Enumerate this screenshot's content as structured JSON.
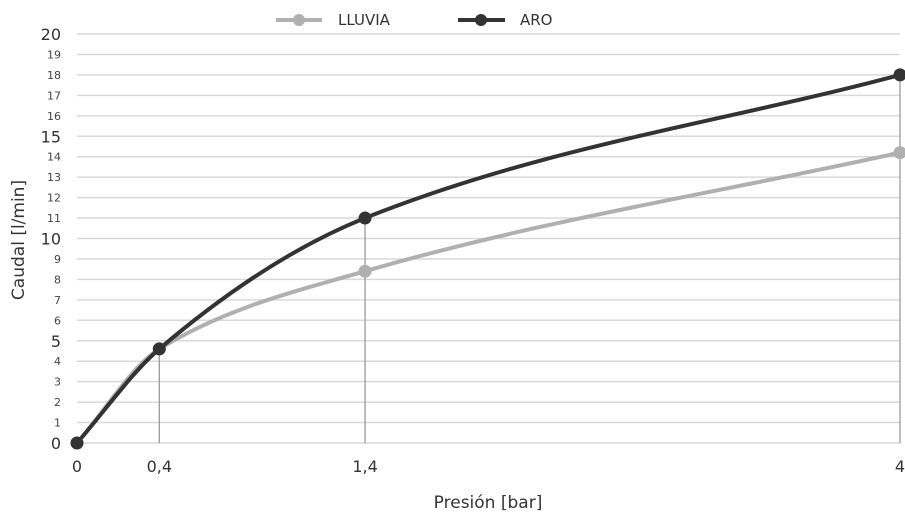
{
  "chart_data": {
    "type": "line",
    "xlabel": "Presión [bar]",
    "ylabel": "Caudal [l/min]",
    "x": [
      0,
      0.4,
      1.4,
      4
    ],
    "x_tick_labels": [
      "0",
      "0,4",
      "1,4",
      "4"
    ],
    "ylim": [
      0,
      20
    ],
    "y_ticks": [
      0,
      1,
      2,
      3,
      4,
      5,
      6,
      7,
      8,
      9,
      10,
      11,
      12,
      13,
      14,
      15,
      16,
      17,
      18,
      19,
      20
    ],
    "y_major_ticks": [
      0,
      5,
      10,
      15,
      20
    ],
    "grid": true,
    "legend_position": "top-center",
    "series": [
      {
        "name": "LLUVIA",
        "color": "#b0b0b0",
        "values": [
          0,
          4.6,
          8.4,
          14.2
        ]
      },
      {
        "name": "ARO",
        "color": "#333333",
        "values": [
          0,
          4.6,
          11,
          18
        ]
      }
    ]
  }
}
